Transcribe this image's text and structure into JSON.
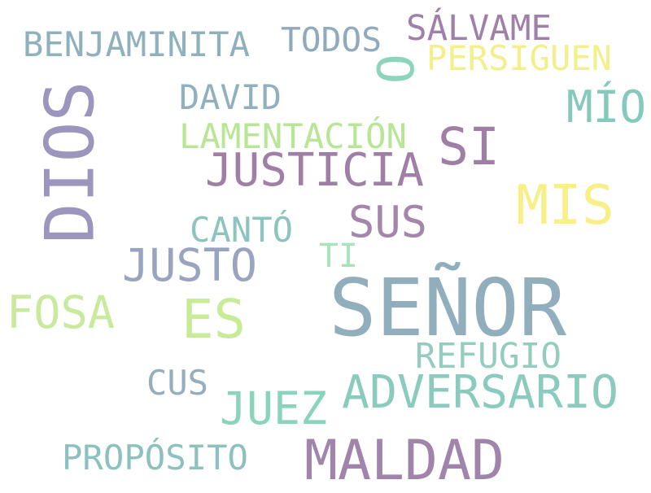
{
  "palette": {
    "blue_gray": "#8fa9bd",
    "purple": "#9f80a8",
    "lavender": "#9c95bd",
    "teal": "#85c9bd",
    "yellow": "#f5ef88",
    "light_green": "#b9e596"
  },
  "words": [
    {
      "id": "benjaminita",
      "text": "BENJAMINITA",
      "color": "#8fb0bd",
      "rotated": false
    },
    {
      "id": "todos",
      "text": "TODOS",
      "color": "#8fa9bd",
      "rotated": false
    },
    {
      "id": "salvame",
      "text": "SÁLVAME",
      "color": "#9f80a8",
      "rotated": false
    },
    {
      "id": "o",
      "text": "O",
      "color": "#8dd4bd",
      "rotated": true
    },
    {
      "id": "persiguen",
      "text": "PERSIGUEN",
      "color": "#f3ef8c",
      "rotated": false
    },
    {
      "id": "dios",
      "text": "DIOS",
      "color": "#9c95bd",
      "rotated": true
    },
    {
      "id": "david",
      "text": "DAVID",
      "color": "#8fb0bd",
      "rotated": false
    },
    {
      "id": "mio",
      "text": "MÍO",
      "color": "#85c9bd",
      "rotated": false
    },
    {
      "id": "lamentacion",
      "text": "LAMENTACIÓN",
      "color": "#b9e596",
      "rotated": false
    },
    {
      "id": "si",
      "text": "SI",
      "color": "#a07fa6",
      "rotated": false
    },
    {
      "id": "justicia",
      "text": "JUSTICIA",
      "color": "#a07fa6",
      "rotated": false
    },
    {
      "id": "mis",
      "text": "MIS",
      "color": "#f7ef88",
      "rotated": false
    },
    {
      "id": "canto",
      "text": "CANTÓ",
      "color": "#8dc4bd",
      "rotated": false
    },
    {
      "id": "sus",
      "text": "SUS",
      "color": "#a586ab",
      "rotated": false
    },
    {
      "id": "ti",
      "text": "TI",
      "color": "#a7e3bb",
      "rotated": false
    },
    {
      "id": "justo",
      "text": "JUSTO",
      "color": "#98a4c0",
      "rotated": false
    },
    {
      "id": "senor",
      "text": "SEÑOR",
      "color": "#91aebd",
      "rotated": false
    },
    {
      "id": "fosa",
      "text": "FOSA",
      "color": "#c9ea9c",
      "rotated": false
    },
    {
      "id": "es",
      "text": "ES",
      "color": "#c6ec98",
      "rotated": false
    },
    {
      "id": "refugio",
      "text": "REFUGIO",
      "color": "#94cdbd",
      "rotated": false
    },
    {
      "id": "cus",
      "text": "CUS",
      "color": "#94aebd",
      "rotated": false
    },
    {
      "id": "adversario",
      "text": "ADVERSARIO",
      "color": "#8acbbd",
      "rotated": false
    },
    {
      "id": "juez",
      "text": "JUEZ",
      "color": "#8ad3bd",
      "rotated": false
    },
    {
      "id": "proposito",
      "text": "PROPÓSITO",
      "color": "#8cc1bd",
      "rotated": false
    },
    {
      "id": "maldad",
      "text": "MALDAD",
      "color": "#a184ab",
      "rotated": false
    }
  ]
}
